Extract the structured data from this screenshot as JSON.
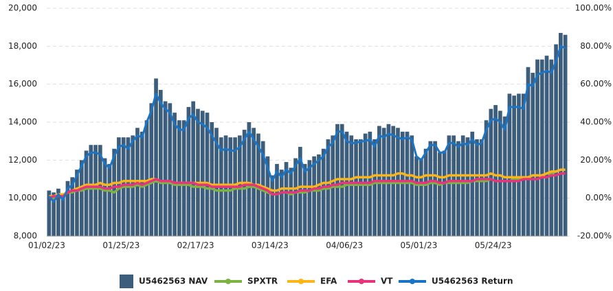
{
  "chart_data": {
    "type": "bar",
    "categories": [
      "01/02/23",
      null,
      null,
      null,
      null,
      null,
      null,
      null,
      null,
      null,
      null,
      null,
      null,
      null,
      null,
      null,
      "01/25/23",
      null,
      null,
      null,
      null,
      null,
      null,
      null,
      null,
      null,
      null,
      null,
      null,
      null,
      null,
      null,
      "02/17/23",
      null,
      null,
      null,
      null,
      null,
      null,
      null,
      null,
      null,
      null,
      null,
      null,
      null,
      null,
      null,
      "03/14/23",
      null,
      null,
      null,
      null,
      null,
      null,
      null,
      null,
      null,
      null,
      null,
      null,
      null,
      null,
      null,
      "04/06/23",
      null,
      null,
      null,
      null,
      null,
      null,
      null,
      null,
      null,
      null,
      null,
      null,
      null,
      null,
      null,
      "05/01/23",
      null,
      null,
      null,
      null,
      null,
      null,
      null,
      null,
      null,
      null,
      null,
      null,
      null,
      null,
      null,
      "05/24/23",
      null,
      null,
      null,
      null,
      null,
      null,
      null,
      null,
      null,
      null,
      null,
      null,
      null,
      null,
      null
    ],
    "series": [
      {
        "name": "U5462563 NAV",
        "type": "bar",
        "color": "#3d5d7c",
        "values": [
          10400,
          10300,
          10500,
          10200,
          10900,
          11100,
          11500,
          12000,
          12500,
          12800,
          12800,
          12800,
          12100,
          11800,
          12600,
          13200,
          13200,
          13200,
          13300,
          13700,
          13500,
          14100,
          15000,
          16300,
          15700,
          15100,
          15000,
          14500,
          14100,
          14100,
          14800,
          15100,
          14700,
          14600,
          14500,
          14000,
          13700,
          13200,
          13300,
          13200,
          13200,
          13300,
          13600,
          14000,
          13700,
          13400,
          13000,
          12200,
          11200,
          11800,
          11500,
          11900,
          11600,
          12100,
          12700,
          11800,
          12000,
          12200,
          12300,
          12600,
          13100,
          13300,
          13900,
          13900,
          13500,
          13300,
          13100,
          13100,
          13400,
          13500,
          13100,
          13800,
          13700,
          13900,
          13800,
          13700,
          13500,
          13500,
          13300,
          12200,
          12100,
          12600,
          13000,
          13000,
          12400,
          12500,
          13300,
          13300,
          13000,
          13300,
          13200,
          13500,
          13100,
          13100,
          14100,
          14700,
          14900,
          14600,
          14300,
          15500,
          15400,
          15500,
          15500,
          16900,
          16600,
          17300,
          17300,
          17500,
          17300,
          18100,
          18700,
          18600
        ]
      },
      {
        "name": "SPXTR",
        "type": "line",
        "axis": "y2",
        "color": "#7cb342",
        "values": [
          1,
          0,
          2,
          1,
          3,
          3,
          4,
          4,
          5,
          5,
          5,
          5,
          4,
          4,
          3,
          5,
          6,
          6,
          6,
          7,
          6,
          7,
          8,
          9,
          8,
          8,
          8,
          7,
          7,
          7,
          7,
          6,
          6,
          6,
          5,
          5,
          4,
          4,
          4,
          4,
          5,
          5,
          5,
          6,
          6,
          5,
          4,
          3,
          2,
          2,
          3,
          3,
          2,
          3,
          3,
          3,
          4,
          4,
          4,
          5,
          5,
          6,
          6,
          6,
          7,
          7,
          7,
          7,
          7,
          7,
          8,
          8,
          8,
          8,
          8,
          8,
          8,
          8,
          8,
          7,
          7,
          7,
          8,
          8,
          7,
          8,
          8,
          8,
          8,
          8,
          8,
          9,
          9,
          9,
          9,
          10,
          9,
          9,
          9,
          9,
          10,
          10,
          11,
          11,
          12,
          12,
          12,
          13,
          13,
          14,
          15,
          15
        ]
      },
      {
        "name": "EFA",
        "type": "line",
        "axis": "y2",
        "color": "#f9b51a",
        "values": [
          1,
          1,
          2,
          2,
          3,
          4,
          5,
          6,
          7,
          7,
          7,
          8,
          7,
          7,
          8,
          8,
          9,
          9,
          9,
          9,
          9,
          9,
          10,
          10,
          9,
          9,
          9,
          8,
          8,
          8,
          8,
          8,
          8,
          8,
          8,
          7,
          7,
          7,
          7,
          7,
          7,
          8,
          8,
          8,
          7,
          7,
          6,
          5,
          4,
          4,
          5,
          5,
          5,
          5,
          6,
          6,
          6,
          6,
          7,
          8,
          8,
          9,
          10,
          10,
          10,
          10,
          11,
          11,
          11,
          11,
          12,
          12,
          12,
          12,
          12,
          13,
          13,
          12,
          12,
          11,
          11,
          12,
          12,
          12,
          11,
          11,
          12,
          12,
          12,
          12,
          12,
          12,
          12,
          12,
          12,
          13,
          12,
          12,
          11,
          11,
          11,
          11,
          11,
          11,
          12,
          12,
          12,
          13,
          14,
          14,
          15,
          15
        ]
      },
      {
        "name": "VT",
        "type": "line",
        "axis": "y2",
        "color": "#e6357a",
        "values": [
          0,
          1,
          1,
          1,
          3,
          4,
          4,
          5,
          6,
          6,
          6,
          6,
          5,
          5,
          6,
          6,
          7,
          7,
          7,
          8,
          7,
          8,
          9,
          10,
          9,
          9,
          9,
          8,
          8,
          8,
          8,
          8,
          7,
          7,
          7,
          6,
          6,
          6,
          6,
          6,
          6,
          6,
          7,
          7,
          7,
          6,
          5,
          4,
          2,
          2,
          3,
          3,
          3,
          3,
          4,
          4,
          4,
          5,
          5,
          6,
          6,
          7,
          7,
          8,
          8,
          8,
          8,
          8,
          8,
          8,
          9,
          9,
          9,
          9,
          9,
          9,
          9,
          9,
          9,
          8,
          8,
          8,
          9,
          9,
          8,
          8,
          9,
          9,
          9,
          9,
          9,
          9,
          10,
          10,
          10,
          10,
          9,
          9,
          9,
          9,
          9,
          9,
          10,
          10,
          10,
          10,
          11,
          11,
          12,
          12,
          13,
          13
        ]
      },
      {
        "name": "U5462563 Return",
        "type": "line",
        "axis": "y2",
        "color": "#1b75c4",
        "values": [
          1,
          -2,
          2,
          -1,
          5,
          7,
          12,
          17,
          22,
          24,
          24,
          23,
          18,
          16,
          22,
          27,
          28,
          26,
          30,
          33,
          32,
          40,
          46,
          55,
          50,
          47,
          45,
          39,
          36,
          36,
          42,
          44,
          40,
          39,
          37,
          33,
          29,
          25,
          26,
          25,
          25,
          27,
          31,
          35,
          31,
          27,
          23,
          16,
          9,
          14,
          11,
          15,
          13,
          17,
          21,
          14,
          16,
          18,
          20,
          22,
          27,
          29,
          35,
          35,
          30,
          29,
          29,
          30,
          30,
          31,
          27,
          33,
          32,
          34,
          33,
          32,
          31,
          32,
          31,
          22,
          20,
          24,
          28,
          28,
          24,
          24,
          29,
          29,
          27,
          29,
          28,
          31,
          28,
          29,
          36,
          41,
          42,
          40,
          36,
          48,
          48,
          48,
          47,
          60,
          59,
          65,
          66,
          67,
          66,
          72,
          80,
          79
        ]
      }
    ],
    "ylim": [
      8000,
      20000
    ],
    "yticks": [
      {
        "value": 8000,
        "label": "8,000"
      },
      {
        "value": 10000,
        "label": "10,000"
      },
      {
        "value": 12000,
        "label": "12,000"
      },
      {
        "value": 14000,
        "label": "14,000"
      },
      {
        "value": 16000,
        "label": "16,000"
      },
      {
        "value": 18000,
        "label": "18,000"
      },
      {
        "value": 20000,
        "label": "20,000"
      }
    ],
    "y2lim": [
      -20,
      100
    ],
    "y2ticks": [
      {
        "value": -20,
        "label": "-20.00%"
      },
      {
        "value": 0,
        "label": "0.00%"
      },
      {
        "value": 20,
        "label": "20.00%"
      },
      {
        "value": 40,
        "label": "40.00%"
      },
      {
        "value": 60,
        "label": "60.00%"
      },
      {
        "value": 80,
        "label": "80.00%"
      },
      {
        "value": 100,
        "label": "100.00%"
      }
    ],
    "grid": true,
    "legend": "bottom"
  }
}
